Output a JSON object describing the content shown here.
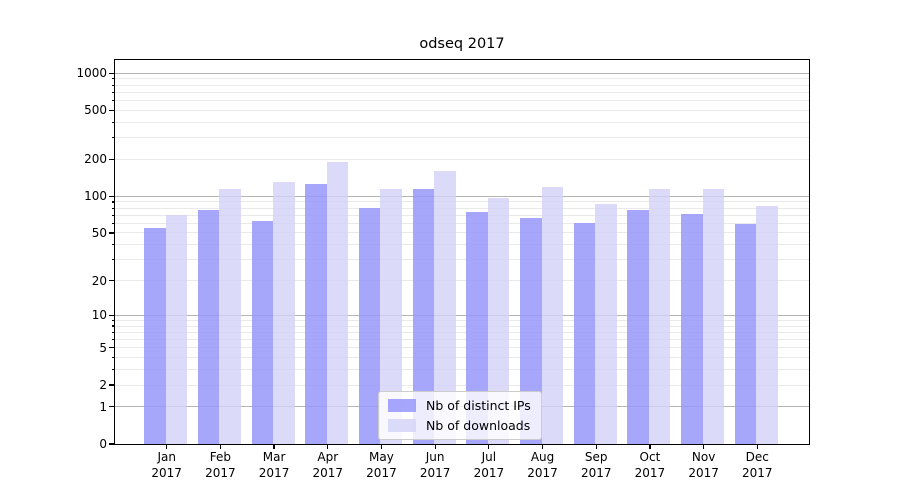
{
  "chart_data": {
    "type": "bar",
    "title": "odseq 2017",
    "categories": [
      "Jan",
      "Feb",
      "Mar",
      "Apr",
      "May",
      "Jun",
      "Jul",
      "Aug",
      "Sep",
      "Oct",
      "Nov",
      "Dec"
    ],
    "xticklabels": [
      [
        "Jan",
        "2017"
      ],
      [
        "Feb",
        "2017"
      ],
      [
        "Mar",
        "2017"
      ],
      [
        "Apr",
        "2017"
      ],
      [
        "May",
        "2017"
      ],
      [
        "Jun",
        "2017"
      ],
      [
        "Jul",
        "2017"
      ],
      [
        "Aug",
        "2017"
      ],
      [
        "Sep",
        "2017"
      ],
      [
        "Oct",
        "2017"
      ],
      [
        "Nov",
        "2017"
      ],
      [
        "Dec",
        "2017"
      ]
    ],
    "series": [
      {
        "name": "Nb of distinct IPs",
        "color": "rgba(150,150,250,0.85)",
        "values": [
          55,
          78,
          63,
          125,
          80,
          115,
          75,
          67,
          61,
          77,
          72,
          59
        ]
      },
      {
        "name": "Nb of downloads",
        "color": "rgba(210,210,248,0.80)",
        "values": [
          70,
          115,
          130,
          190,
          115,
          160,
          97,
          120,
          87,
          115,
          115,
          84
        ]
      }
    ],
    "yscale": "log1p",
    "ylim": [
      0,
      1280
    ],
    "yticks": [
      1000,
      500,
      200,
      100,
      50,
      20,
      10,
      5,
      2,
      1,
      0
    ],
    "yticklabels": [
      "1000",
      "500",
      "200",
      "100",
      "50",
      "20",
      "10",
      "5",
      "2",
      "1",
      "0"
    ],
    "grid": {
      "major_values": [
        1,
        10,
        100,
        1000
      ],
      "major_color": "#b4b4b4",
      "minor_color": "#e9e9e9"
    },
    "legend": {
      "position": "lower-center"
    }
  }
}
